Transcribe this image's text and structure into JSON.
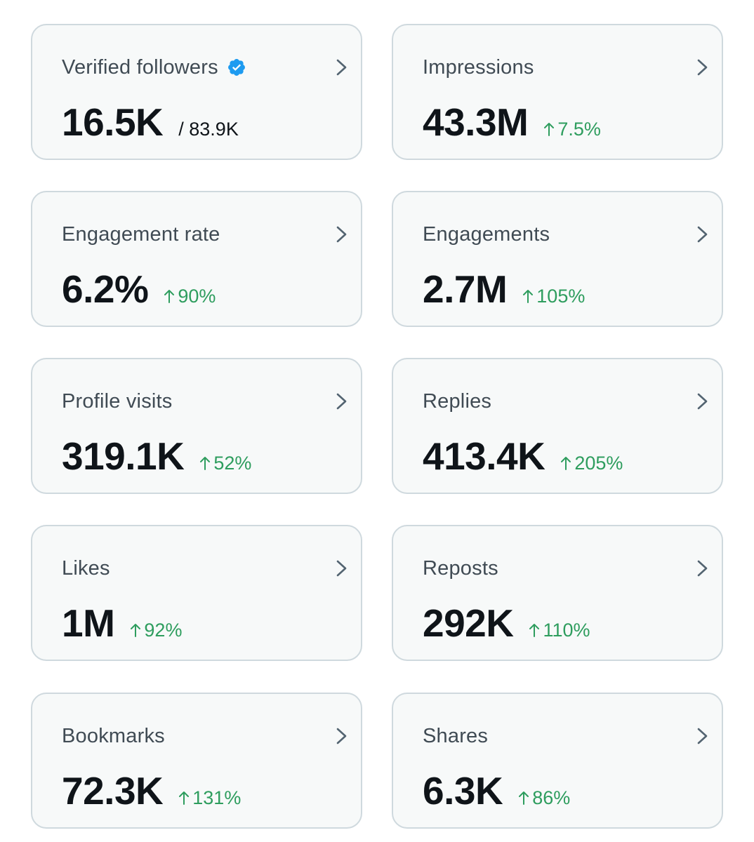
{
  "colors": {
    "card_bg": "#f7f9f9",
    "card_border": "#cfd9de",
    "label": "#404b54",
    "value": "#0f1419",
    "positive_change": "#2e9d5e",
    "verified_badge": "#1d9bf0"
  },
  "cards": [
    {
      "label": "Verified followers",
      "value": "16.5K",
      "total": "/ 83.9K",
      "icon": "verified-badge-icon"
    },
    {
      "label": "Impressions",
      "value": "43.3M",
      "change": "7.5%"
    },
    {
      "label": "Engagement rate",
      "value": "6.2%",
      "change": "90%"
    },
    {
      "label": "Engagements",
      "value": "2.7M",
      "change": "105%"
    },
    {
      "label": "Profile visits",
      "value": "319.1K",
      "change": "52%"
    },
    {
      "label": "Replies",
      "value": "413.4K",
      "change": "205%"
    },
    {
      "label": "Likes",
      "value": "1M",
      "change": "92%"
    },
    {
      "label": "Reposts",
      "value": "292K",
      "change": "110%"
    },
    {
      "label": "Bookmarks",
      "value": "72.3K",
      "change": "131%"
    },
    {
      "label": "Shares",
      "value": "6.3K",
      "change": "86%"
    }
  ]
}
